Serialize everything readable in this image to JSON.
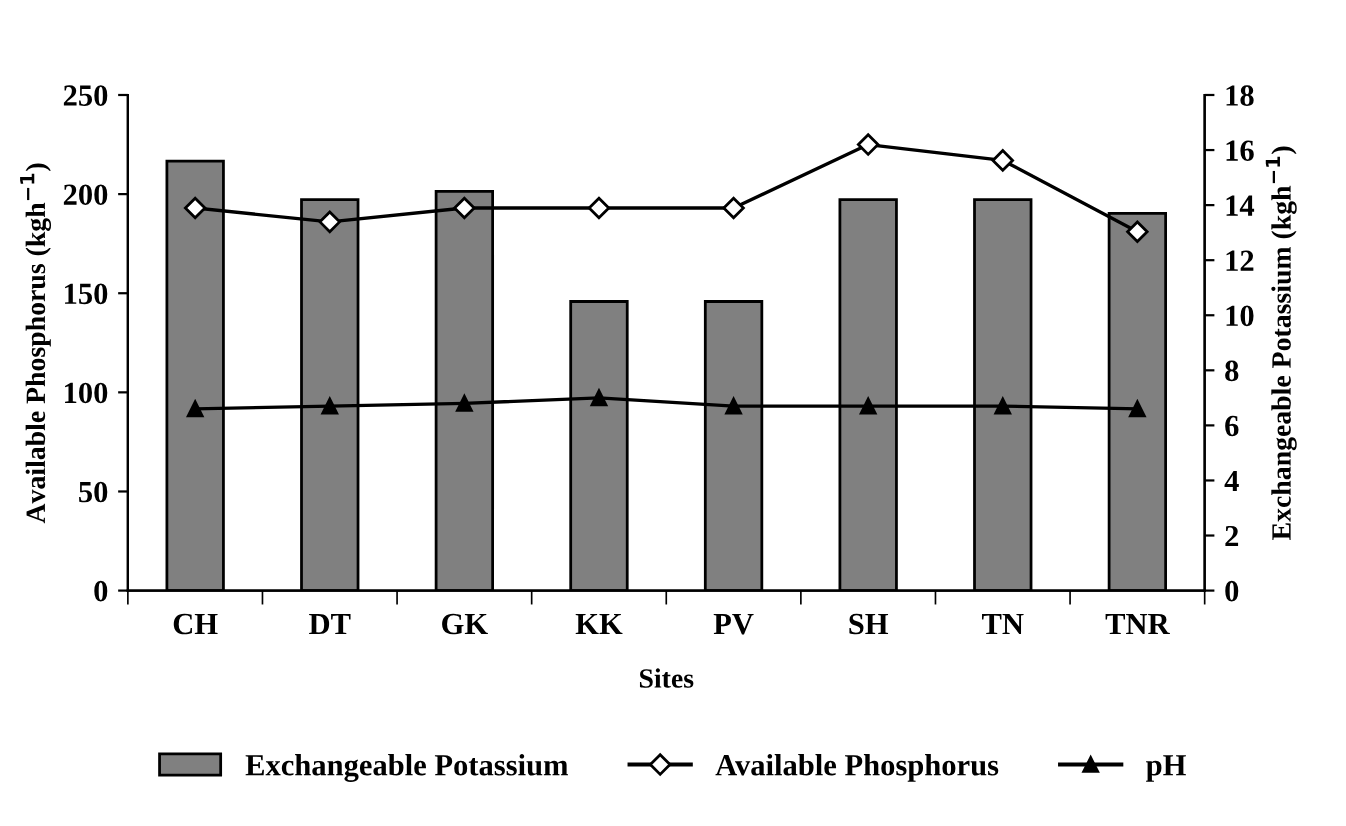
{
  "chart_data": {
    "type": "bar",
    "xlabel": "Sites",
    "ylabel": "Available Phosphorus (kgh$^{−1}$)",
    "y2label": "Exchangeable Potassium (kgh$^{−1}$)",
    "categories": [
      "CH",
      "DT",
      "GK",
      "KK",
      "PV",
      "SH",
      "TN",
      "TNR"
    ],
    "series": [
      {
        "name": "Exchangeable Potassium",
        "axis": "y2",
        "color": "#808080",
        "values": [
          15.6,
          14.2,
          14.5,
          10.5,
          10.5,
          14.2,
          14.2,
          13.7
        ]
      },
      {
        "name": "Available Phosphorus",
        "type": "line",
        "axis": "y",
        "color": "#000000",
        "marker": "diamond",
        "values": [
          193,
          186,
          193,
          193,
          193,
          225,
          217,
          181
        ]
      },
      {
        "name": "pH",
        "type": "line",
        "axis": "y2",
        "color": "#000000",
        "marker": "triangle",
        "values": [
          6.6,
          6.7,
          6.8,
          7.0,
          6.7,
          6.7,
          6.7,
          6.6
        ]
      }
    ],
    "ylim": [
      0,
      250
    ],
    "yticks": [
      0,
      50,
      100,
      150,
      200,
      250
    ],
    "y2lim": [
      0,
      18
    ],
    "y2ticks": [
      0,
      2,
      4,
      6,
      8,
      10,
      12,
      14,
      16,
      18
    ],
    "grid": false,
    "legend": "bottom"
  }
}
